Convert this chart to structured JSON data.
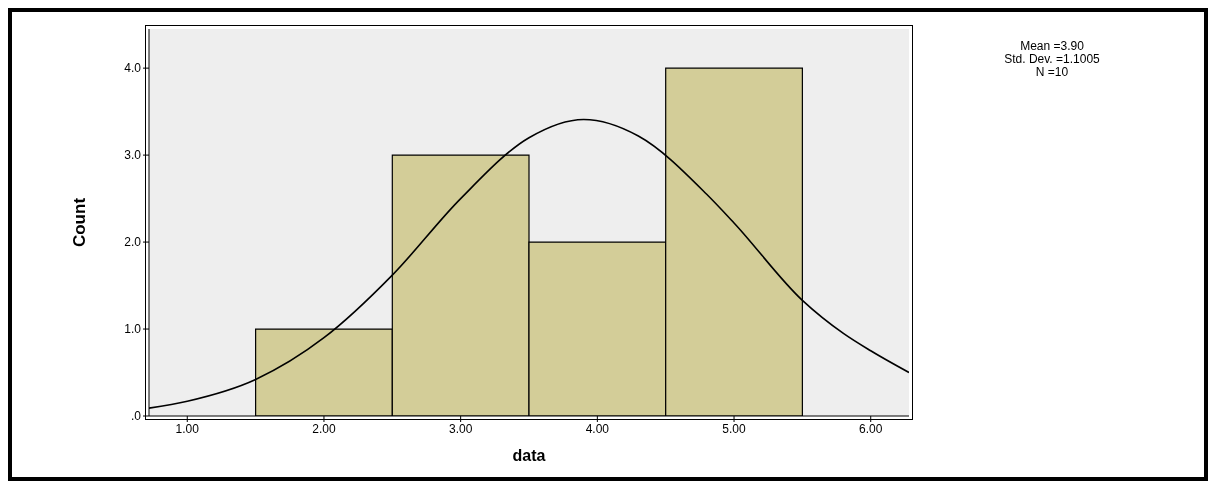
{
  "chart_data": {
    "type": "histogram",
    "xlabel": "data",
    "ylabel": "Count",
    "bins": [
      1.5,
      2.5,
      3.5,
      4.5,
      5.5
    ],
    "values": [
      1,
      3,
      2,
      4
    ],
    "color": "#d3cd98",
    "series": [
      {
        "type": "line",
        "color": "#000000",
        "x": [
          0.72,
          1.0,
          1.5,
          2.0,
          2.5,
          3.0,
          3.5,
          3.9,
          4.3,
          4.8,
          5.0,
          5.5,
          5.8,
          6.0,
          6.28
        ],
        "values": [
          0.09,
          0.17,
          0.42,
          0.9,
          1.62,
          2.5,
          3.2,
          3.41,
          3.22,
          2.55,
          2.22,
          1.33,
          0.95,
          0.75,
          0.5
        ]
      }
    ],
    "xlim": [
      0.72,
      6.28
    ],
    "xticks": [
      {
        "value": 1,
        "label": "1.00"
      },
      {
        "value": 2,
        "label": "2.00"
      },
      {
        "value": 3,
        "label": "3.00"
      },
      {
        "value": 4,
        "label": "4.00"
      },
      {
        "value": 5,
        "label": "5.00"
      },
      {
        "value": 6,
        "label": "6.00"
      }
    ],
    "ylim": [
      0,
      4.45
    ],
    "yticks": [
      {
        "value": 0,
        "label": ".0"
      },
      {
        "value": 1,
        "label": "1.0"
      },
      {
        "value": 2,
        "label": "2.0"
      },
      {
        "value": 3,
        "label": "3.0"
      },
      {
        "value": 4,
        "label": "4.0"
      }
    ],
    "annotations": [
      "Mean =3.90",
      "Std. Dev. =1.1005",
      "N =10"
    ]
  }
}
